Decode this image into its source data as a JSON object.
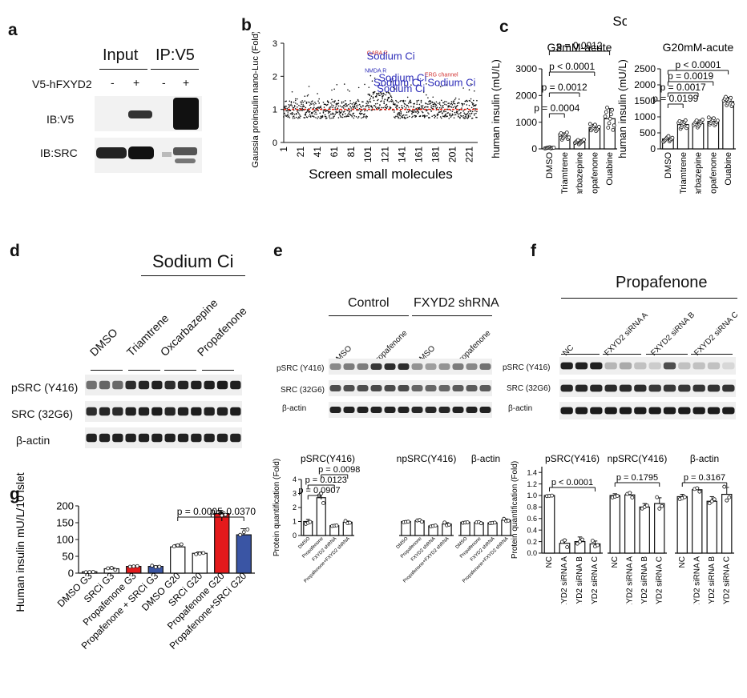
{
  "panels": {
    "a": {
      "label": "a",
      "input_label": "Input",
      "ip_label": "IP:V5",
      "row_label": "V5-hFXYD2",
      "signs": [
        "-",
        "+",
        "-",
        "+"
      ],
      "blot_labels": [
        "IB:V5",
        "IB:SRC"
      ]
    },
    "b": {
      "label": "b"
    },
    "c": {
      "label": "c"
    },
    "d": {
      "label": "d",
      "group_title": "Sodium Ci",
      "lanes": [
        "DMSO",
        "Triamtrene",
        "Oxcarbazepine",
        "Propafenone"
      ],
      "blot_labels": [
        "pSRC (Y416)",
        "SRC (32G6)",
        "β-actin"
      ]
    },
    "e": {
      "label": "e",
      "group_titles": [
        "Control",
        "FXYD2 shRNA"
      ],
      "lanes": [
        "DMSO",
        "Propafenone",
        "DMSO",
        "Propafenone"
      ],
      "blot_labels": [
        "pSRC (Y416)",
        "SRC (32G6)",
        "β-actin"
      ]
    },
    "f": {
      "label": "f",
      "group_title": "Propafenone",
      "lanes": [
        "NC",
        "FXYD2 siRNA A",
        "FXYD2 siRNA B",
        "FXYD2 siRNA C"
      ],
      "blot_labels": [
        "pSRC (Y416)",
        "SRC (32G6)",
        "β-actin"
      ]
    },
    "g": {
      "label": "g"
    }
  },
  "chart_data": [
    {
      "id": "b",
      "type": "scatter",
      "xlabel": "Screen small molecules",
      "ylabel": "Gaussia proinsulin nano-Luc (Fold)",
      "ylim": [
        0,
        3
      ],
      "x_ticks": [
        "1",
        "21",
        "41",
        "61",
        "81",
        "101",
        "121",
        "141",
        "161",
        "181",
        "201",
        "221"
      ],
      "y_ticks": [
        "0",
        "1",
        "2",
        "3"
      ],
      "reference_line": 1,
      "annotations": [
        {
          "text": "GABA R",
          "color": "#d03030",
          "x": 112,
          "y": 2.65
        },
        {
          "text": "Sodium Ci",
          "color": "#2b2bb8",
          "x": 128,
          "y": 2.5
        },
        {
          "text": "NMDA R",
          "color": "#2b2bb8",
          "x": 110,
          "y": 2.12
        },
        {
          "text": "ERG channel",
          "color": "#d03030",
          "x": 188,
          "y": 2.0
        },
        {
          "text": "Sodium Ci",
          "color": "#2b2bb8",
          "x": 142,
          "y": 1.85
        },
        {
          "text": "Sodium Ci",
          "color": "#2b2bb8",
          "x": 136,
          "y": 1.7
        },
        {
          "text": "Sodium Ci",
          "color": "#2b2bb8",
          "x": 200,
          "y": 1.7
        },
        {
          "text": "Sodium Ci",
          "color": "#2b2bb8",
          "x": 140,
          "y": 1.52
        }
      ]
    },
    {
      "id": "c-left",
      "type": "bar",
      "suptitle": "Sodium cis",
      "title": "G3mM-acute",
      "ylabel": "human insulin (mU/L)",
      "ylim": [
        0,
        3000
      ],
      "y_ticks": [
        "0",
        "1000",
        "2000",
        "3000"
      ],
      "categories": [
        "DMSO",
        "Triamtrene",
        "Oxcarbazepine",
        "Propafenone",
        "Ouabine"
      ],
      "values": [
        40,
        480,
        260,
        800,
        1130
      ],
      "errors": [
        20,
        120,
        80,
        120,
        380
      ],
      "pvalues": [
        {
          "text": "p = 0.0004",
          "from": 0,
          "to": 1
        },
        {
          "text": "p = 0.0012",
          "from": 0,
          "to": 2
        },
        {
          "text": "p < 0.0001",
          "from": 0,
          "to": 3
        },
        {
          "text": "p = 0.0012",
          "from": 0,
          "to": 4
        }
      ]
    },
    {
      "id": "c-right",
      "type": "bar",
      "title": "G20mM-acute",
      "ylabel": "human insulin (mU/L)",
      "ylim": [
        0,
        2500
      ],
      "y_ticks": [
        "0",
        "500",
        "1000",
        "1500",
        "2000",
        "2500"
      ],
      "categories": [
        "DMSO",
        "Triamtrene",
        "Oxcarbazepine",
        "Propafenone",
        "Ouabine"
      ],
      "values": [
        310,
        760,
        790,
        860,
        1480
      ],
      "errors": [
        80,
        120,
        110,
        110,
        130
      ],
      "pvalues": [
        {
          "text": "p = 0.0199",
          "from": 0,
          "to": 1
        },
        {
          "text": "p = 0.0017",
          "from": 0,
          "to": 2
        },
        {
          "text": "p = 0.0019",
          "from": 0,
          "to": 3
        },
        {
          "text": "p < 0.0001",
          "from": 0,
          "to": 4
        }
      ]
    },
    {
      "id": "e-psrc",
      "type": "bar",
      "title": "pSRC(Y416)",
      "ylabel": "Protein quantification (Fold)",
      "ylim": [
        0,
        4
      ],
      "y_ticks": [
        "0",
        "1",
        "2",
        "3",
        "4"
      ],
      "categories": [
        "DMSO",
        "Propafenone",
        "FXYD2 shRNA",
        "Propafenone+FXYD2 shRNA"
      ],
      "values": [
        1.0,
        2.7,
        0.7,
        0.95
      ],
      "errors": [
        0.15,
        0.35,
        0.05,
        0.08
      ],
      "pvalues": [
        {
          "text": "p = 0.0907",
          "from": 0,
          "to": 1
        },
        {
          "text": "p = 0.0123",
          "from": 0,
          "to": 2
        },
        {
          "text": "p = 0.0098",
          "from": 1,
          "to": 3
        }
      ]
    },
    {
      "id": "e-npsrc",
      "type": "bar",
      "title": "npSRC(Y416)",
      "ylim": [
        0,
        4
      ],
      "categories": [
        "DMSO",
        "Propafenone",
        "FXYD2 shRNA",
        "Propafenone+FXYD2 shRNA"
      ],
      "values": [
        1.0,
        1.05,
        0.68,
        0.82
      ],
      "errors": [
        0.05,
        0.06,
        0.08,
        0.1
      ]
    },
    {
      "id": "e-actin",
      "type": "bar",
      "title": "β-actin",
      "ylim": [
        0,
        4
      ],
      "categories": [
        "DMSO",
        "Propafenone",
        "FXYD2 shRNA",
        "Propafenone+FXYD2 shRNA"
      ],
      "values": [
        0.95,
        0.92,
        0.9,
        1.1
      ],
      "errors": [
        0.04,
        0.04,
        0.05,
        0.08
      ]
    },
    {
      "id": "f-psrc",
      "type": "bar",
      "title": "pSRC(Y416)",
      "ylabel": "Protein quantification (Fold)",
      "ylim": [
        0,
        1.5
      ],
      "y_ticks": [
        "0.0",
        "0.2",
        "0.4",
        "0.6",
        "0.8",
        "1.0",
        "1.2",
        "1.4"
      ],
      "categories": [
        "NC",
        "FXYD2 siRNA A",
        "FXYD2 siRNA B",
        "FXYD2 siRNA C"
      ],
      "values": [
        1.0,
        0.17,
        0.2,
        0.16
      ],
      "errors": [
        0.01,
        0.06,
        0.08,
        0.05
      ],
      "pvalues": [
        {
          "text": "p < 0.0001",
          "from": 0,
          "to": 3
        }
      ]
    },
    {
      "id": "f-npsrc",
      "type": "bar",
      "title": "npSRC(Y416)",
      "ylim": [
        0,
        1.5
      ],
      "categories": [
        "NC",
        "FXYD2 siRNA A",
        "FXYD2 siRNA B",
        "FXYD2 siRNA C"
      ],
      "values": [
        1.0,
        1.01,
        0.8,
        0.86
      ],
      "errors": [
        0.03,
        0.04,
        0.06,
        0.1
      ],
      "pvalues": [
        {
          "text": "p = 0.1795",
          "from": 0,
          "to": 3
        }
      ]
    },
    {
      "id": "f-actin",
      "type": "bar",
      "title": "β-actin",
      "ylim": [
        0,
        1.5
      ],
      "categories": [
        "NC",
        "FXYD2 siRNA A",
        "FXYD2 siRNA B",
        "FXYD2 siRNA C"
      ],
      "values": [
        0.98,
        1.1,
        0.9,
        1.02
      ],
      "errors": [
        0.04,
        0.03,
        0.08,
        0.12
      ],
      "pvalues": [
        {
          "text": "p = 0.3167",
          "from": 0,
          "to": 3
        }
      ]
    },
    {
      "id": "g",
      "type": "bar",
      "ylabel": "Human insulin mU/L/10 islets",
      "ylim": [
        0,
        200
      ],
      "y_ticks": [
        "0",
        "50",
        "100",
        "150",
        "200"
      ],
      "categories": [
        "DMSO G3",
        "SRCi G3",
        "Propafenone G3",
        "Propafenone + SRCi G3",
        "DMSO G20",
        "SRCi G20",
        "Propafenone G20",
        "Propafenone+SRCi G20"
      ],
      "values": [
        4,
        13,
        20,
        20,
        78,
        59,
        177,
        114
      ],
      "errors": [
        1,
        3,
        2,
        2,
        7,
        4,
        5,
        18
      ],
      "colors": [
        "#ffffff",
        "#ffffff",
        "#e41a1c",
        "#3a55a4",
        "#ffffff",
        "#ffffff",
        "#e41a1c",
        "#3a55a4"
      ],
      "pvalues": [
        {
          "text": "p = 0.0005",
          "from": 4,
          "to": 6
        },
        {
          "text": "p = 0.0370",
          "from": 6,
          "to": 7
        }
      ]
    }
  ]
}
